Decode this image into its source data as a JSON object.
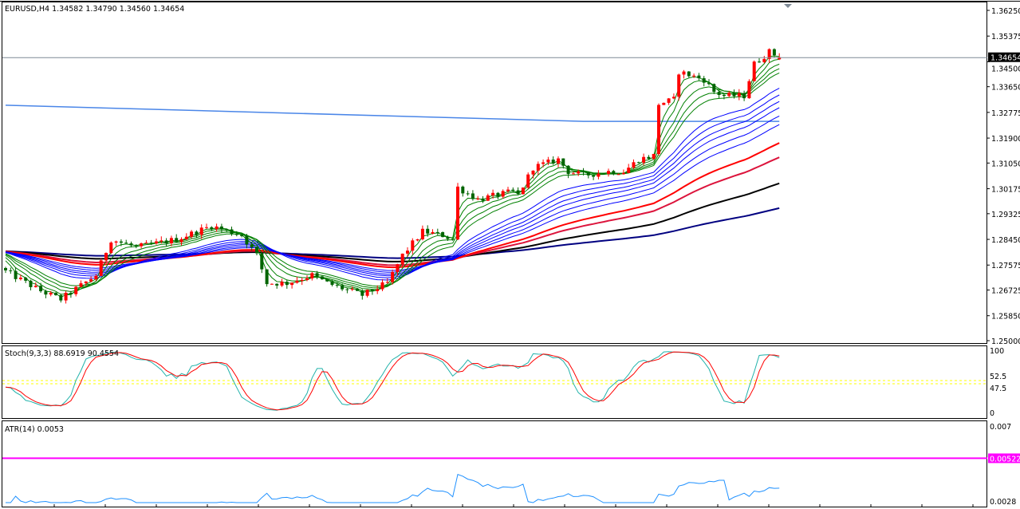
{
  "main": {
    "title": "EURUSD,H4  1.34582 1.34790 1.34560 1.34654",
    "symbol": "EURUSD",
    "timeframe": "H4",
    "ohlc": {
      "open": 1.34582,
      "high": 1.3479,
      "low": 1.3456,
      "close": 1.34654
    },
    "current_price_label": "1.34654",
    "price_axis": [
      "1.36250",
      "1.35375",
      "1.34500",
      "1.33650",
      "1.32775",
      "1.31900",
      "1.31050",
      "1.30175",
      "1.29325",
      "1.28450",
      "1.27575",
      "1.26725",
      "1.25850",
      "1.25000"
    ],
    "price_range": [
      1.25,
      1.3625
    ],
    "colors": {
      "bull": "#ff0000",
      "bear": "#006400",
      "bid_line": "#7f8a96"
    }
  },
  "chart_data": {
    "type": "candlestick",
    "price_path": [
      [
        0,
        1.2736
      ],
      [
        7,
        1.2669
      ],
      [
        11,
        1.2641
      ],
      [
        18,
        1.2723
      ],
      [
        21,
        1.2845
      ],
      [
        26,
        1.2818
      ],
      [
        34,
        1.2845
      ],
      [
        41,
        1.2891
      ],
      [
        47,
        1.2859
      ],
      [
        50,
        1.2791
      ],
      [
        52,
        1.2696
      ],
      [
        56,
        1.2696
      ],
      [
        61,
        1.2723
      ],
      [
        64,
        1.2696
      ],
      [
        71,
        1.2655
      ],
      [
        76,
        1.2696
      ],
      [
        79,
        1.2791
      ],
      [
        83,
        1.2872
      ],
      [
        87,
        1.2859
      ],
      [
        89,
        1.2845
      ],
      [
        90,
        1.3022
      ],
      [
        94,
        1.2981
      ],
      [
        101,
        1.3008
      ],
      [
        102,
        1.2995
      ],
      [
        105,
        1.309
      ],
      [
        110,
        1.3117
      ],
      [
        112,
        1.3076
      ],
      [
        115,
        1.3063
      ],
      [
        120,
        1.3076
      ],
      [
        123,
        1.3076
      ],
      [
        126,
        1.3117
      ],
      [
        129,
        1.313
      ],
      [
        130,
        1.3307
      ],
      [
        133,
        1.3321
      ],
      [
        134,
        1.3416
      ],
      [
        139,
        1.3389
      ],
      [
        141,
        1.3348
      ],
      [
        143,
        1.3334
      ],
      [
        147,
        1.3334
      ],
      [
        149,
        1.3443
      ],
      [
        152,
        1.3484
      ],
      [
        154,
        1.34654
      ]
    ],
    "moving_averages": [
      {
        "period": 3,
        "color": "#008000"
      },
      {
        "period": 5,
        "color": "#008000"
      },
      {
        "period": 8,
        "color": "#008000"
      },
      {
        "period": 11,
        "color": "#008000"
      },
      {
        "period": 14,
        "color": "#008000"
      },
      {
        "period": 25,
        "color": "#0000ff"
      },
      {
        "period": 30,
        "color": "#0000ff"
      },
      {
        "period": 35,
        "color": "#0000ff"
      },
      {
        "period": 40,
        "color": "#0000ff"
      },
      {
        "period": 47,
        "color": "#0000ff"
      },
      {
        "period": 55,
        "color": "#0000ff"
      },
      {
        "period": 75,
        "color": "#ff0000"
      },
      {
        "period": 95,
        "color": "#dc143c"
      },
      {
        "period": 150,
        "color": "#000000"
      },
      {
        "period": 260,
        "color": "#000080"
      }
    ],
    "higher_tf_ma": {
      "color": "#4a86e8",
      "points": [
        [
          0,
          1.3302
        ],
        [
          115,
          1.3247
        ],
        [
          154,
          1.3247
        ]
      ]
    }
  },
  "stochastic": {
    "label": "Stoch(9,3,3) 88.6919 90.4554",
    "params": [
      9,
      3,
      3
    ],
    "axis": [
      "100",
      "52.5",
      "47.5",
      "0"
    ],
    "levels": [
      52.5,
      47.5
    ],
    "colors": {
      "main": "#20b2aa",
      "signal": "#ff0000",
      "levels": "#ffff00"
    }
  },
  "atr": {
    "label": "ATR(14) 0.0053",
    "period": 14,
    "axis_top": "0.007",
    "axis_bottom": "0.0028",
    "range": [
      0.0028,
      0.007
    ],
    "level": 0.00522,
    "level_label": "0.00522",
    "colors": {
      "line": "#1e90ff",
      "level": "#ff00ff"
    }
  }
}
